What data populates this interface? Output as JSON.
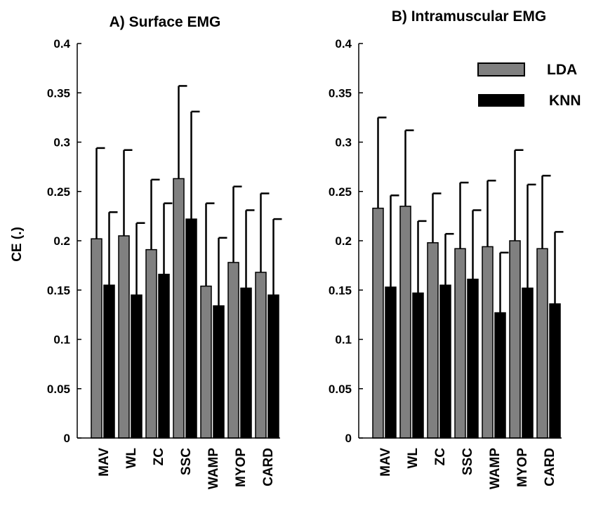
{
  "ylabel": "CE (.)",
  "yticks": [
    "0",
    "0.05",
    "0.1",
    "0.15",
    "0.2",
    "0.25",
    "0.3",
    "0.35",
    "0.4"
  ],
  "legend": {
    "lda": "LDA",
    "knn": "KNN"
  },
  "colors": {
    "lda": "#808080",
    "knn": "#000000",
    "axis": "#000000"
  },
  "chart_data": [
    {
      "type": "bar",
      "title": "A) Surface EMG",
      "ylabel": "CE (.)",
      "ylim": [
        0,
        0.4
      ],
      "categories": [
        "MAV",
        "WL",
        "ZC",
        "SSC",
        "WAMP",
        "MYOP",
        "CARD"
      ],
      "series": [
        {
          "name": "LDA",
          "values": [
            0.202,
            0.205,
            0.191,
            0.263,
            0.154,
            0.178,
            0.168
          ],
          "error_upper": [
            0.294,
            0.292,
            0.262,
            0.357,
            0.238,
            0.255,
            0.248
          ]
        },
        {
          "name": "KNN",
          "values": [
            0.155,
            0.145,
            0.166,
            0.222,
            0.134,
            0.152,
            0.145
          ],
          "error_upper": [
            0.229,
            0.218,
            0.238,
            0.331,
            0.203,
            0.231,
            0.222
          ]
        }
      ],
      "legend": "none",
      "grid": false
    },
    {
      "type": "bar",
      "title": "B) Intramuscular EMG",
      "ylim": [
        0,
        0.4
      ],
      "categories": [
        "MAV",
        "WL",
        "ZC",
        "SSC",
        "WAMP",
        "MYOP",
        "CARD"
      ],
      "series": [
        {
          "name": "LDA",
          "values": [
            0.233,
            0.235,
            0.198,
            0.192,
            0.194,
            0.2,
            0.192
          ],
          "error_upper": [
            0.325,
            0.312,
            0.248,
            0.259,
            0.261,
            0.292,
            0.266
          ]
        },
        {
          "name": "KNN",
          "values": [
            0.153,
            0.147,
            0.155,
            0.161,
            0.127,
            0.152,
            0.136
          ],
          "error_upper": [
            0.246,
            0.22,
            0.207,
            0.231,
            0.188,
            0.257,
            0.209
          ]
        }
      ],
      "legend": "top-right",
      "grid": false
    }
  ]
}
